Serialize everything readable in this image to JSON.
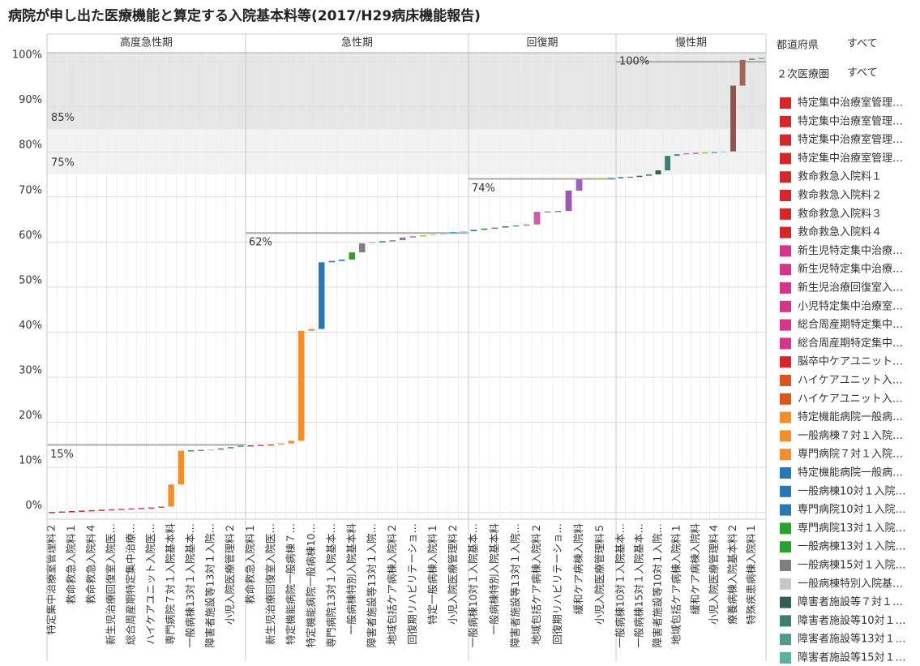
{
  "chart_data": {
    "type": "waterfall",
    "title": "病院が申し出た医療機能と算定する入院基本料等(2017/H29病床機能報告)",
    "ylim": [
      -1.5,
      102
    ],
    "yticks": [
      {
        "value": 0,
        "label": "0%"
      },
      {
        "value": 10,
        "label": "10%"
      },
      {
        "value": 20,
        "label": "20%"
      },
      {
        "value": 30,
        "label": "30%"
      },
      {
        "value": 40,
        "label": "40%"
      },
      {
        "value": 50,
        "label": "50%"
      },
      {
        "value": 60,
        "label": "60%"
      },
      {
        "value": 70,
        "label": "70%"
      },
      {
        "value": 80,
        "label": "80%"
      },
      {
        "value": 90,
        "label": "90%"
      },
      {
        "value": 100,
        "label": "100%"
      }
    ],
    "grid": true,
    "bands": [
      {
        "value": 75,
        "label": "75%",
        "color": "#f2f2f2"
      },
      {
        "value": 85,
        "label": "85%",
        "color": "#e6e6e6"
      }
    ],
    "panels": [
      {
        "name": "高度急性期",
        "categories": [
          "特定集中治療室管理料２",
          null,
          "救命救急入院料１",
          null,
          "救命救急入院料４",
          null,
          "新生児治療回復室入院医…",
          null,
          "総合周産期特定集中治療…",
          null,
          "ハイケアユニット入院医…",
          null,
          "専門病院７対１入院基本料",
          null,
          "一般病棟13対１入院基本…",
          null,
          "障害者施設等13対１入院…",
          null,
          "小児入院医療管理料２",
          null
        ],
        "values": [
          0.1,
          0.1,
          0.1,
          0.1,
          0.1,
          0.1,
          0.1,
          0.1,
          0.1,
          0.1,
          0.1,
          0.2,
          4.9,
          7.5,
          0.1,
          0.1,
          0.1,
          0.2,
          0.3,
          0.3
        ],
        "colors": [
          "#d62728",
          "#d62728",
          "#d62728",
          "#d62728",
          "#d62728",
          "#d62728",
          "#d6338a",
          "#d6338a",
          "#d6338a",
          "#d6338a",
          "#d6338a",
          "#d9541e",
          "#f28e2b",
          "#f28e2b",
          "#2ca02c",
          "#7f7f7f",
          "#c7c7c7",
          "#3a7f72",
          "#4e9a8c",
          "#5bb0a0"
        ],
        "reference": {
          "value": 15,
          "label": "15%"
        }
      },
      {
        "name": "急性期",
        "categories": [
          "救命救急入院料１",
          null,
          "新生児治療回復室入院医…",
          null,
          "特定機能病院一般病棟７…",
          null,
          "特定機能病院一般病棟10…",
          null,
          "専門病院13対１入院基本…",
          null,
          "一般病棟特別入院基本料",
          null,
          "障害者施設等13対１入院…",
          null,
          "地域包括ケア病棟入院料２",
          null,
          "回復期リハビリテーショ…",
          null,
          "特定一般病棟入院料１",
          null,
          "小児入院医療管理料２",
          null
        ],
        "values": [
          0.1,
          0.1,
          0.1,
          0.2,
          0.6,
          24.4,
          0.4,
          14.8,
          0.3,
          0.3,
          1.6,
          2.0,
          0.3,
          0.2,
          0.2,
          0.6,
          0.3,
          0.2,
          0.2,
          0.2,
          0.3,
          0.2
        ],
        "colors": [
          "#d62728",
          "#d6338a",
          "#d9541e",
          "#f28e2b",
          "#f28e2b",
          "#f28e2b",
          "#f28e2b",
          "#2a77b4",
          "#2a77b4",
          "#2a77b4",
          "#2ca02c",
          "#7f7f7f",
          "#c7c7c7",
          "#3a7f72",
          "#8c8c8c",
          "#9b6fb5",
          "#b07cc6",
          "#bcbd22",
          "#dbdb8d",
          "#9edae5",
          "#17becf",
          "#aec7e8"
        ],
        "reference": {
          "value": 62,
          "label": "62%"
        }
      },
      {
        "name": "回復期",
        "categories": [
          "一般病棟10対１入院基本…",
          null,
          "一般病棟特別入院基本料",
          null,
          "障害者施設等13対１入院…",
          null,
          "地域包括ケア病棟入院料２",
          null,
          "回復期リハビリテーショ…",
          null,
          "緩和ケア病棟入院料",
          null,
          "小児入院医療管理料５",
          null
        ],
        "values": [
          0.3,
          0.3,
          0.2,
          0.3,
          0.2,
          0.2,
          2.8,
          0.1,
          0.1,
          4.5,
          2.5,
          0.2,
          0.1,
          0.1
        ],
        "colors": [
          "#2a77b4",
          "#2ca02c",
          "#7f7f7f",
          "#3a7f72",
          "#4e9a8c",
          "#8c8c8c",
          "#c85fa6",
          "#b07cc6",
          "#8c8c8c",
          "#9b59b6",
          "#a05fc0",
          "#7fb08c",
          "#bcbd22",
          "#5bb0a0"
        ],
        "reference": {
          "value": 74,
          "label": "74%"
        }
      },
      {
        "name": "慢性期",
        "categories": [
          "一般病棟10対１入院基本…",
          null,
          "一般病棟15対１入院基本…",
          null,
          "障害者施設等10対１入院…",
          null,
          "地域包括ケア病棟入院料１",
          null,
          "緩和ケア病棟入院料",
          null,
          "小児入院医療管理料４",
          null,
          "療養病棟入院基本料２",
          null,
          "特殊疾患病棟入院料１",
          null
        ],
        "values": [
          0.1,
          0.1,
          0.2,
          0.3,
          0.9,
          3.2,
          0.4,
          0.2,
          0.1,
          0.1,
          0.1,
          0.1,
          14.6,
          5.7,
          0.3,
          0.2
        ],
        "colors": [
          "#2a77b4",
          "#7f7f7f",
          "#2f5f55",
          "#3a7f72",
          "#2f5f55",
          "#3a7f72",
          "#4e9a8c",
          "#b07cc6",
          "#9b6fb5",
          "#bcbd22",
          "#5bb0a0",
          "#9edae5",
          "#8c564b",
          "#a0665a",
          "#7f7f7f",
          "#5bb0a0"
        ],
        "reference": {
          "value": 100,
          "label": "100%"
        }
      }
    ],
    "filters": [
      {
        "label": "都道府県",
        "value": "すべて"
      },
      {
        "label": "２次医療圏",
        "value": "すべて"
      }
    ],
    "legend_items": [
      {
        "name": "特定集中治療室管理…",
        "color": "#d62728"
      },
      {
        "name": "特定集中治療室管理…",
        "color": "#d62728"
      },
      {
        "name": "特定集中治療室管理…",
        "color": "#d62728"
      },
      {
        "name": "特定集中治療室管理…",
        "color": "#d62728"
      },
      {
        "name": "救命救急入院料１",
        "color": "#d62728"
      },
      {
        "name": "救命救急入院料２",
        "color": "#d62728"
      },
      {
        "name": "救命救急入院料３",
        "color": "#d62728"
      },
      {
        "name": "救命救急入院料４",
        "color": "#d62728"
      },
      {
        "name": "新生児特定集中治療…",
        "color": "#d6338a"
      },
      {
        "name": "新生児特定集中治療…",
        "color": "#d6338a"
      },
      {
        "name": "新生児治療回復室入…",
        "color": "#d6338a"
      },
      {
        "name": "小児特定集中治療室…",
        "color": "#d6338a"
      },
      {
        "name": "総合周産期特定集中…",
        "color": "#d6338a"
      },
      {
        "name": "総合周産期特定集中…",
        "color": "#d6338a"
      },
      {
        "name": "脳卒中ケアユニット…",
        "color": "#d62728"
      },
      {
        "name": "ハイケアユニット入…",
        "color": "#d9541e"
      },
      {
        "name": "ハイケアユニット入…",
        "color": "#d9541e"
      },
      {
        "name": "特定機能病院一般病…",
        "color": "#f28e2b"
      },
      {
        "name": "一般病棟７対１入院…",
        "color": "#f28e2b"
      },
      {
        "name": "専門病院７対１入院…",
        "color": "#f28e2b"
      },
      {
        "name": "特定機能病院一般病…",
        "color": "#2a77b4"
      },
      {
        "name": "一般病棟10対１入院…",
        "color": "#2a77b4"
      },
      {
        "name": "専門病院10対１入院…",
        "color": "#2a77b4"
      },
      {
        "name": "専門病院13対１入院…",
        "color": "#2ca02c"
      },
      {
        "name": "一般病棟13対１入院…",
        "color": "#2ca02c"
      },
      {
        "name": "一般病棟15対１入院…",
        "color": "#7f7f7f"
      },
      {
        "name": "一般病棟特別入院基…",
        "color": "#c7c7c7"
      },
      {
        "name": "障害者施設等７対１…",
        "color": "#2f5f55"
      },
      {
        "name": "障害者施設等10対１…",
        "color": "#3a7f72"
      },
      {
        "name": "障害者施設等13対１…",
        "color": "#4e9a8c"
      },
      {
        "name": "障害者施設等15対１…",
        "color": "#5bb0a0"
      }
    ]
  }
}
